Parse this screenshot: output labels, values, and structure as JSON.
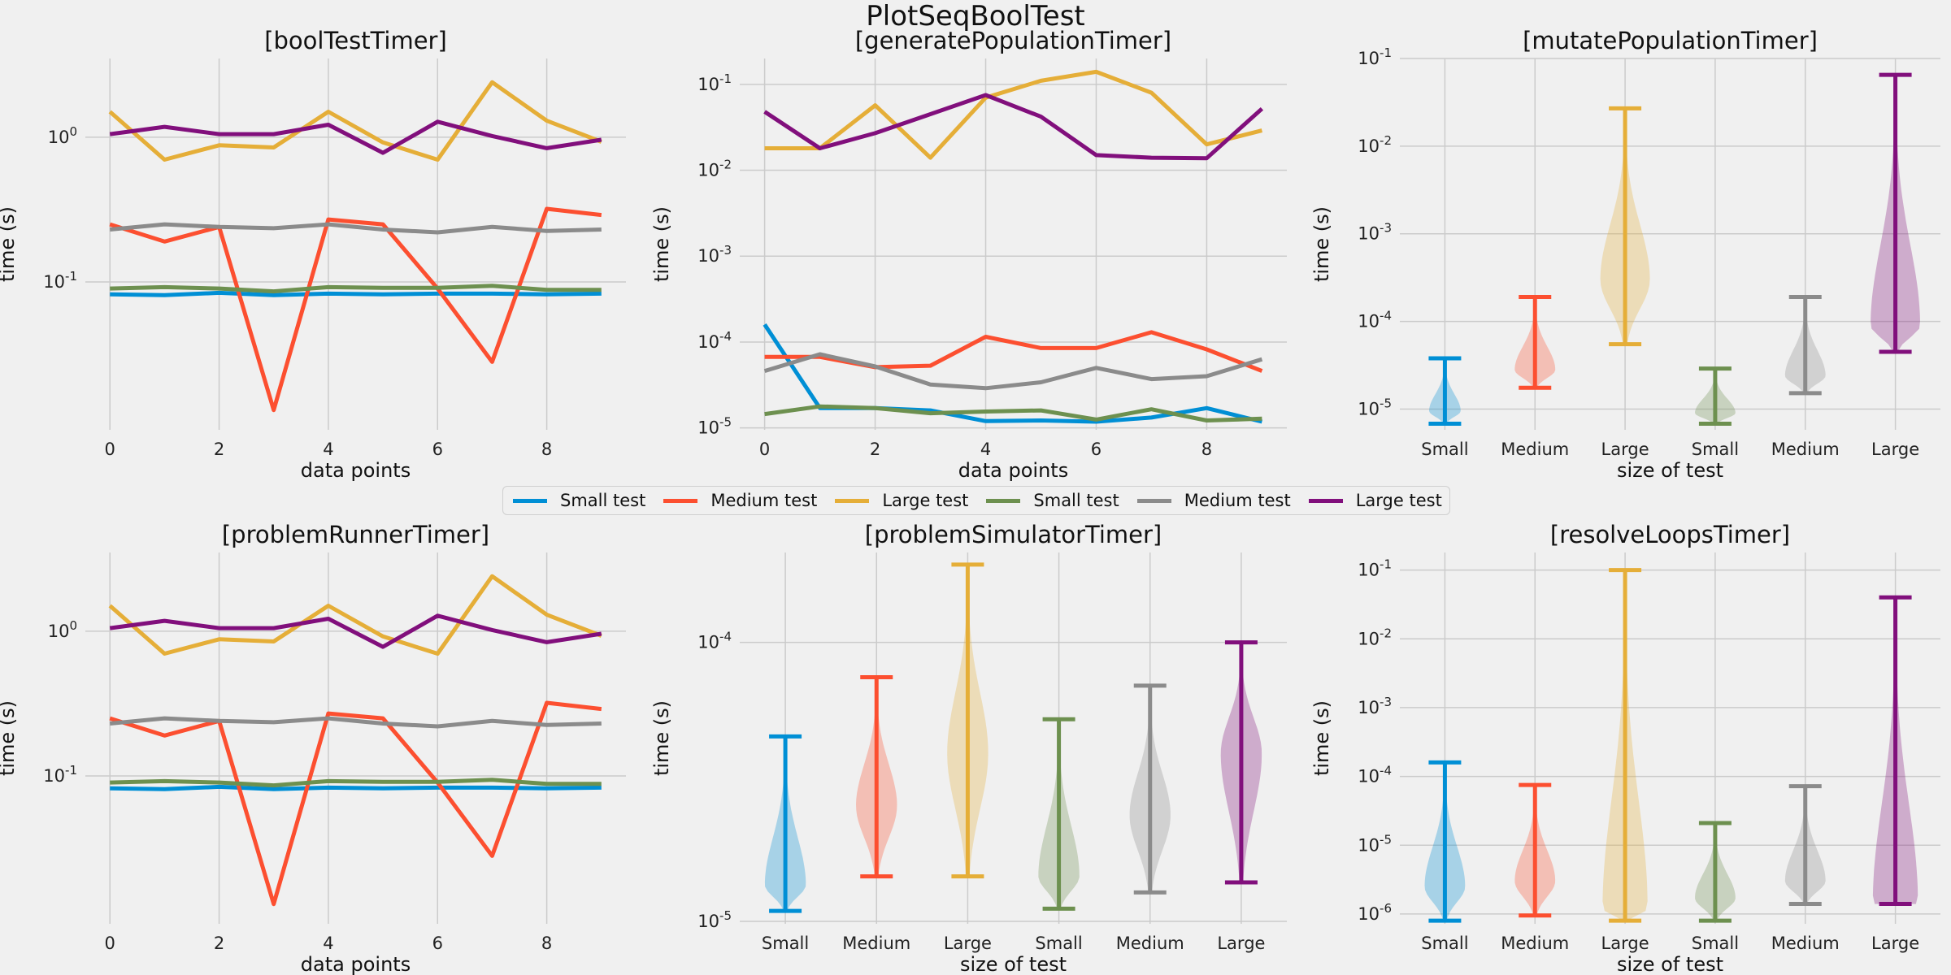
{
  "title": "PlotSeqBoolTest",
  "legend": {
    "entries": [
      {
        "label": "Small test",
        "color": "#008fd5"
      },
      {
        "label": "Medium test",
        "color": "#fc4f30"
      },
      {
        "label": "Large test",
        "color": "#e5ae38"
      },
      {
        "label": "Small test",
        "color": "#6d904f"
      },
      {
        "label": "Medium test",
        "color": "#8b8b8b"
      },
      {
        "label": "Large test",
        "color": "#810f7c"
      }
    ]
  },
  "chart_data": [
    {
      "id": "boolTestTimer",
      "type": "line",
      "title": "[boolTestTimer]",
      "xlabel": "data points",
      "ylabel": "time (s)",
      "yscale": "log",
      "xlim": [
        -0.45,
        9.45
      ],
      "ylim": [
        0.0095,
        3.5
      ],
      "xticks": [
        0,
        2,
        4,
        6,
        8
      ],
      "yticks": [
        0.1,
        1
      ],
      "ytick_labels": [
        "10^-1",
        "10^0"
      ],
      "grid": true,
      "x": [
        0,
        1,
        2,
        3,
        4,
        5,
        6,
        7,
        8,
        9
      ],
      "series": [
        {
          "name": "Small test",
          "color": "#008fd5",
          "values": [
            0.082,
            0.081,
            0.084,
            0.081,
            0.083,
            0.082,
            0.083,
            0.083,
            0.082,
            0.083
          ]
        },
        {
          "name": "Medium test",
          "color": "#fc4f30",
          "values": [
            0.25,
            0.19,
            0.24,
            0.013,
            0.27,
            0.25,
            0.09,
            0.028,
            0.32,
            0.29
          ]
        },
        {
          "name": "Large test",
          "color": "#e5ae38",
          "values": [
            1.5,
            0.7,
            0.88,
            0.85,
            1.5,
            0.92,
            0.7,
            2.4,
            1.3,
            0.93
          ]
        },
        {
          "name": "Small test",
          "color": "#6d904f",
          "values": [
            0.09,
            0.092,
            0.09,
            0.086,
            0.092,
            0.091,
            0.091,
            0.094,
            0.088,
            0.088
          ]
        },
        {
          "name": "Medium test",
          "color": "#8b8b8b",
          "values": [
            0.23,
            0.25,
            0.24,
            0.235,
            0.25,
            0.23,
            0.22,
            0.24,
            0.225,
            0.23
          ]
        },
        {
          "name": "Large test",
          "color": "#810f7c",
          "values": [
            1.05,
            1.18,
            1.05,
            1.05,
            1.22,
            0.78,
            1.28,
            1.02,
            0.84,
            0.96
          ]
        }
      ]
    },
    {
      "id": "generatePopulationTimer",
      "type": "line",
      "title": "[generatePopulationTimer]",
      "xlabel": "data points",
      "ylabel": "time (s)",
      "yscale": "log",
      "xlim": [
        -0.45,
        9.45
      ],
      "ylim": [
        9.5e-06,
        0.2
      ],
      "xticks": [
        0,
        2,
        4,
        6,
        8
      ],
      "yticks": [
        1e-05,
        0.0001,
        0.001,
        0.01,
        0.1
      ],
      "ytick_labels": [
        "10^-5",
        "10^-4",
        "10^-3",
        "10^-2",
        "10^-1"
      ],
      "grid": true,
      "x": [
        0,
        1,
        2,
        3,
        4,
        5,
        6,
        7,
        8,
        9
      ],
      "series": [
        {
          "name": "Small test",
          "color": "#008fd5",
          "values": [
            0.00016,
            1.7e-05,
            1.7e-05,
            1.6e-05,
            1.2e-05,
            1.22e-05,
            1.18e-05,
            1.32e-05,
            1.7e-05,
            1.18e-05
          ]
        },
        {
          "name": "Medium test",
          "color": "#fc4f30",
          "values": [
            6.7e-05,
            6.7e-05,
            5.1e-05,
            5.3e-05,
            0.000115,
            8.5e-05,
            8.5e-05,
            0.00013,
            8.2e-05,
            4.6e-05
          ]
        },
        {
          "name": "Large test",
          "color": "#e5ae38",
          "values": [
            0.018,
            0.018,
            0.057,
            0.014,
            0.07,
            0.11,
            0.14,
            0.08,
            0.02,
            0.029
          ]
        },
        {
          "name": "Small test",
          "color": "#6d904f",
          "values": [
            1.45e-05,
            1.78e-05,
            1.7e-05,
            1.48e-05,
            1.55e-05,
            1.6e-05,
            1.25e-05,
            1.65e-05,
            1.22e-05,
            1.28e-05
          ]
        },
        {
          "name": "Medium test",
          "color": "#8b8b8b",
          "values": [
            4.6e-05,
            7.2e-05,
            5.2e-05,
            3.2e-05,
            2.9e-05,
            3.4e-05,
            5e-05,
            3.7e-05,
            4e-05,
            6.3e-05
          ]
        },
        {
          "name": "Large test",
          "color": "#810f7c",
          "values": [
            0.048,
            0.018,
            0.027,
            0.045,
            0.075,
            0.042,
            0.015,
            0.014,
            0.0138,
            0.052
          ]
        }
      ]
    },
    {
      "id": "mutatePopulationTimer",
      "type": "violin",
      "title": "[mutatePopulationTimer]",
      "xlabel": "size of test",
      "ylabel": "time (s)",
      "yscale": "log",
      "ylim": [
        5.8e-06,
        0.1
      ],
      "yticks": [
        1e-05,
        0.0001,
        0.001,
        0.01,
        0.1
      ],
      "ytick_labels": [
        "10^-5",
        "10^-4",
        "10^-3",
        "10^-2",
        "10^-1"
      ],
      "grid": true,
      "categories": [
        "Small",
        "Medium",
        "Large",
        "Small",
        "Medium",
        "Large"
      ],
      "violins": [
        {
          "color": "#008fd5",
          "min": 6.8e-06,
          "max": 3.8e-05,
          "mode": 9.5e-06,
          "width": 0.35
        },
        {
          "color": "#fc4f30",
          "min": 1.75e-05,
          "max": 0.00019,
          "mode": 2.8e-05,
          "width": 0.45
        },
        {
          "color": "#e5ae38",
          "min": 5.5e-05,
          "max": 0.027,
          "mode": 0.0003,
          "width": 0.55
        },
        {
          "color": "#6d904f",
          "min": 6.8e-06,
          "max": 2.9e-05,
          "mode": 9e-06,
          "width": 0.45
        },
        {
          "color": "#8b8b8b",
          "min": 1.52e-05,
          "max": 0.00019,
          "mode": 2.4e-05,
          "width": 0.45
        },
        {
          "color": "#810f7c",
          "min": 4.5e-05,
          "max": 0.065,
          "mode": 9e-05,
          "width": 0.55
        }
      ]
    },
    {
      "id": "problemRunnerTimer",
      "type": "line",
      "title": "[problemRunnerTimer]",
      "xlabel": "data points",
      "ylabel": "time (s)",
      "yscale": "log",
      "xlim": [
        -0.45,
        9.45
      ],
      "ylim": [
        0.0095,
        3.5
      ],
      "xticks": [
        0,
        2,
        4,
        6,
        8
      ],
      "yticks": [
        0.1,
        1
      ],
      "ytick_labels": [
        "10^-1",
        "10^0"
      ],
      "grid": true,
      "x": [
        0,
        1,
        2,
        3,
        4,
        5,
        6,
        7,
        8,
        9
      ],
      "series": [
        {
          "name": "Small test",
          "color": "#008fd5",
          "values": [
            0.082,
            0.081,
            0.084,
            0.081,
            0.083,
            0.082,
            0.083,
            0.083,
            0.082,
            0.083
          ]
        },
        {
          "name": "Medium test",
          "color": "#fc4f30",
          "values": [
            0.25,
            0.19,
            0.24,
            0.013,
            0.27,
            0.25,
            0.09,
            0.028,
            0.32,
            0.29
          ]
        },
        {
          "name": "Large test",
          "color": "#e5ae38",
          "values": [
            1.5,
            0.7,
            0.88,
            0.85,
            1.5,
            0.92,
            0.7,
            2.4,
            1.3,
            0.93
          ]
        },
        {
          "name": "Small test",
          "color": "#6d904f",
          "values": [
            0.09,
            0.092,
            0.09,
            0.086,
            0.092,
            0.091,
            0.091,
            0.094,
            0.088,
            0.088
          ]
        },
        {
          "name": "Medium test",
          "color": "#8b8b8b",
          "values": [
            0.23,
            0.25,
            0.24,
            0.235,
            0.25,
            0.23,
            0.22,
            0.24,
            0.225,
            0.23
          ]
        },
        {
          "name": "Large test",
          "color": "#810f7c",
          "values": [
            1.05,
            1.18,
            1.05,
            1.05,
            1.22,
            0.78,
            1.28,
            1.02,
            0.84,
            0.96
          ]
        }
      ]
    },
    {
      "id": "problemSimulatorTimer",
      "type": "violin",
      "title": "[problemSimulatorTimer]",
      "xlabel": "size of test",
      "ylabel": "time (s)",
      "yscale": "log",
      "ylim": [
        9.8e-06,
        0.00021
      ],
      "yticks": [
        1e-05,
        0.0001
      ],
      "ytick_labels": [
        "10^-5",
        "10^-4"
      ],
      "grid": true,
      "categories": [
        "Small",
        "Medium",
        "Large",
        "Small",
        "Medium",
        "Large"
      ],
      "violins": [
        {
          "color": "#008fd5",
          "min": 1.09e-05,
          "max": 4.6e-05,
          "mode": 1.35e-05,
          "width": 0.45
        },
        {
          "color": "#fc4f30",
          "min": 1.45e-05,
          "max": 7.5e-05,
          "mode": 2.6e-05,
          "width": 0.45
        },
        {
          "color": "#e5ae38",
          "min": 1.45e-05,
          "max": 0.00019,
          "mode": 4e-05,
          "width": 0.45
        },
        {
          "color": "#6d904f",
          "min": 1.11e-05,
          "max": 5.3e-05,
          "mode": 1.45e-05,
          "width": 0.45
        },
        {
          "color": "#8b8b8b",
          "min": 1.27e-05,
          "max": 7e-05,
          "mode": 2.4e-05,
          "width": 0.45
        },
        {
          "color": "#810f7c",
          "min": 1.38e-05,
          "max": 0.0001,
          "mode": 4e-05,
          "width": 0.45
        }
      ]
    },
    {
      "id": "resolveLoopsTimer",
      "type": "violin",
      "title": "[resolveLoopsTimer]",
      "xlabel": "size of test",
      "ylabel": "time (s)",
      "yscale": "log",
      "ylim": [
        7.2e-07,
        0.18
      ],
      "yticks": [
        1e-06,
        1e-05,
        0.0001,
        0.001,
        0.01,
        0.1
      ],
      "ytick_labels": [
        "10^-6",
        "10^-5",
        "10^-4",
        "10^-3",
        "10^-2",
        "10^-1"
      ],
      "grid": true,
      "categories": [
        "Small",
        "Medium",
        "Large",
        "Small",
        "Medium",
        "Large"
      ],
      "violins": [
        {
          "color": "#008fd5",
          "min": 8e-07,
          "max": 0.00016,
          "mode": 2.5e-06,
          "width": 0.45
        },
        {
          "color": "#fc4f30",
          "min": 9.5e-07,
          "max": 7.5e-05,
          "mode": 3e-06,
          "width": 0.45
        },
        {
          "color": "#e5ae38",
          "min": 8e-07,
          "max": 0.1,
          "mode": 1.2e-06,
          "width": 0.5
        },
        {
          "color": "#6d904f",
          "min": 8e-07,
          "max": 2.1e-05,
          "mode": 1.7e-06,
          "width": 0.45
        },
        {
          "color": "#8b8b8b",
          "min": 1.4e-06,
          "max": 7.2e-05,
          "mode": 3e-06,
          "width": 0.45
        },
        {
          "color": "#810f7c",
          "min": 1.4e-06,
          "max": 0.04,
          "mode": 1.5e-06,
          "width": 0.5
        }
      ]
    }
  ]
}
